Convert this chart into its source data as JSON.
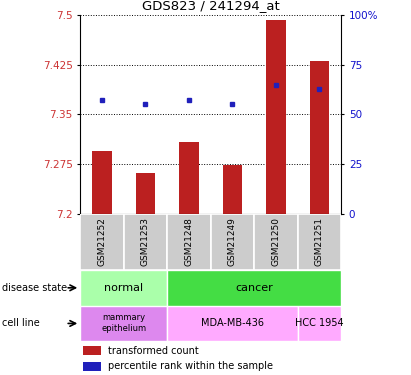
{
  "title": "GDS823 / 241294_at",
  "samples": [
    "GSM21252",
    "GSM21253",
    "GSM21248",
    "GSM21249",
    "GSM21250",
    "GSM21251"
  ],
  "transformed_counts": [
    7.295,
    7.262,
    7.308,
    7.274,
    7.493,
    7.43
  ],
  "percentile_ranks": [
    57,
    55,
    57,
    55,
    65,
    63
  ],
  "y_min": 7.2,
  "y_max": 7.5,
  "y_ticks": [
    7.2,
    7.275,
    7.35,
    7.425,
    7.5
  ],
  "y_tick_labels": [
    "7.2",
    "7.275",
    "7.35",
    "7.425",
    "7.5"
  ],
  "right_y_ticks": [
    0,
    25,
    50,
    75,
    100
  ],
  "right_y_labels": [
    "0",
    "25",
    "50",
    "75",
    "100%"
  ],
  "bar_color": "#bb2020",
  "dot_color": "#2020bb",
  "normal_color": "#aaffaa",
  "cancer_color": "#44dd44",
  "mammary_color": "#dd88ee",
  "mda_color": "#ffaaff",
  "hcc_color": "#ffaaff",
  "sample_bg_color": "#cccccc",
  "bg_color": "#ffffff"
}
